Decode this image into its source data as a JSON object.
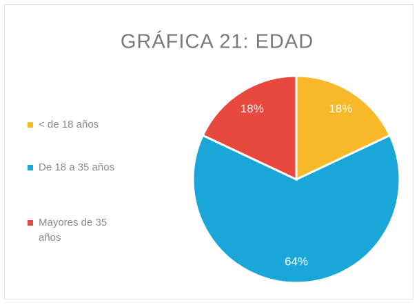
{
  "chart_data": {
    "type": "pie",
    "title": "GRÁFICA 21: EDAD",
    "categories": [
      "< de 18 años",
      "De 18 a 35 años",
      "Mayores de 35 años"
    ],
    "values": [
      18,
      64,
      18
    ],
    "value_labels": [
      "18%",
      "64%",
      "18%"
    ],
    "colors": [
      "#f7b928",
      "#1aa6d8",
      "#e8493f"
    ],
    "legend": "left"
  }
}
